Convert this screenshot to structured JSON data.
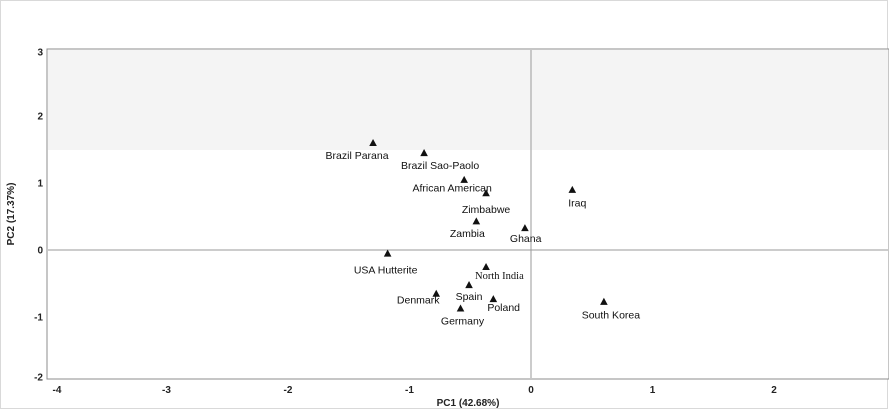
{
  "chart_data": {
    "type": "scatter",
    "title": "",
    "xlabel": "PC1 (42.68%)",
    "ylabel": "PC2 (17.37%)",
    "xlim": [
      -4,
      3
    ],
    "ylim": [
      -2,
      3
    ],
    "xticks": [
      "-4",
      "-3",
      "-2",
      "-1",
      "0",
      "1",
      "2"
    ],
    "yticks": [
      "3",
      "2",
      "1",
      "0",
      "-1",
      "-2"
    ],
    "grid": false,
    "marker": "triangle",
    "points": [
      {
        "label": "Brazil Parana",
        "x": -1.3,
        "y": 1.6
      },
      {
        "label": "Brazil Sao-Paolo",
        "x": -0.88,
        "y": 1.45
      },
      {
        "label": "African American",
        "x": -0.55,
        "y": 1.05
      },
      {
        "label": "Zimbabwe",
        "x": -0.37,
        "y": 0.85
      },
      {
        "label": "Iraq",
        "x": 0.34,
        "y": 0.9
      },
      {
        "label": "Zambia",
        "x": -0.45,
        "y": 0.43
      },
      {
        "label": "Ghana",
        "x": -0.05,
        "y": 0.33
      },
      {
        "label": "USA Hutterite",
        "x": -1.18,
        "y": -0.05
      },
      {
        "label": "North India",
        "x": -0.37,
        "y": -0.25
      },
      {
        "label": "Spain",
        "x": -0.51,
        "y": -0.52
      },
      {
        "label": "Denmark",
        "x": -0.78,
        "y": -0.65
      },
      {
        "label": "Poland",
        "x": -0.31,
        "y": -0.73
      },
      {
        "label": "Germany",
        "x": -0.58,
        "y": -0.87
      },
      {
        "label": "South Korea",
        "x": 0.6,
        "y": -0.77
      }
    ]
  }
}
